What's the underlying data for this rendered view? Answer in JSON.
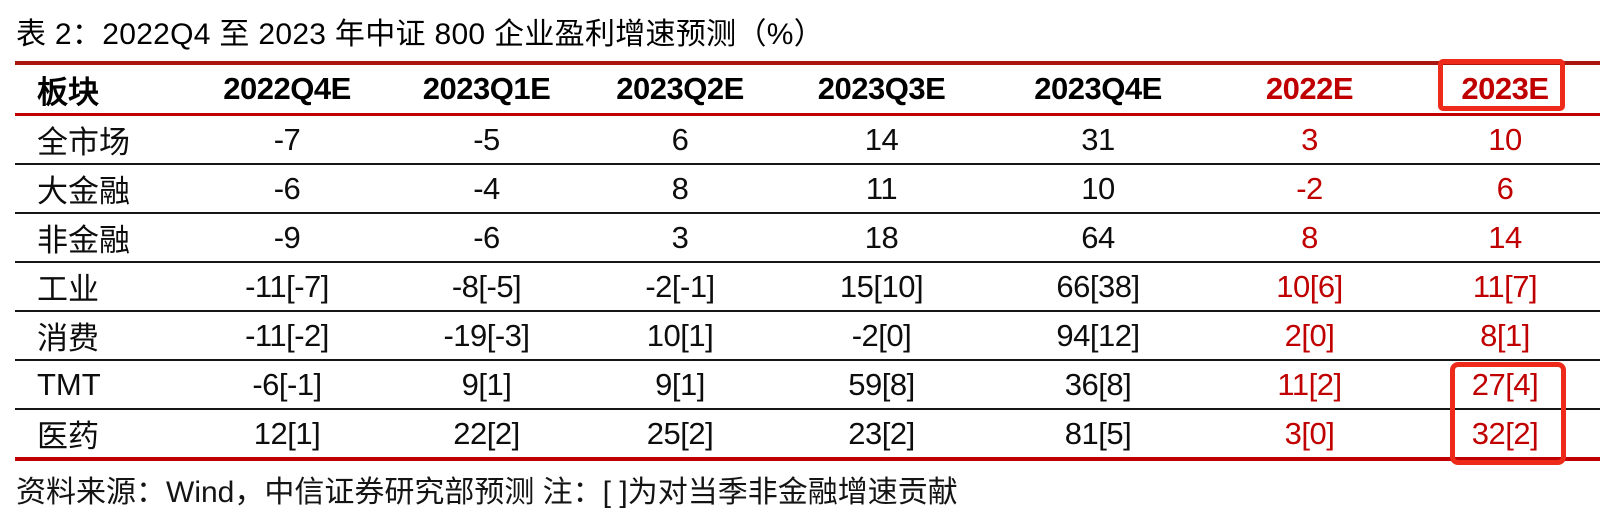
{
  "title": "表 2：2022Q4 至 2023 年中证 800 企业盈利增速预测（%）",
  "table": {
    "columns": [
      "板块",
      "2022Q4E",
      "2023Q1E",
      "2023Q2E",
      "2023Q3E",
      "2023Q4E",
      "2022E",
      "2023E"
    ],
    "red_columns": [
      "2022E",
      "2023E"
    ],
    "rows": [
      {
        "label": "全市场",
        "values": [
          "-7",
          "-5",
          "6",
          "14",
          "31",
          "3",
          "10"
        ]
      },
      {
        "label": "大金融",
        "values": [
          "-6",
          "-4",
          "8",
          "11",
          "10",
          "-2",
          "6"
        ]
      },
      {
        "label": "非金融",
        "values": [
          "-9",
          "-6",
          "3",
          "18",
          "64",
          "8",
          "14"
        ]
      },
      {
        "label": "工业",
        "values": [
          "-11[-7]",
          "-8[-5]",
          "-2[-1]",
          "15[10]",
          "66[38]",
          "10[6]",
          "11[7]"
        ]
      },
      {
        "label": "消费",
        "values": [
          "-11[-2]",
          "-19[-3]",
          "10[1]",
          "-2[0]",
          "94[12]",
          "2[0]",
          "8[1]"
        ]
      },
      {
        "label": "TMT",
        "values": [
          "-6[-1]",
          "9[1]",
          "9[1]",
          "59[8]",
          "36[8]",
          "11[2]",
          "27[4]"
        ]
      },
      {
        "label": "医药",
        "values": [
          "12[1]",
          "22[2]",
          "25[2]",
          "23[2]",
          "81[5]",
          "3[0]",
          "32[2]"
        ]
      }
    ]
  },
  "annotations": {
    "boxed_header": "2023E",
    "boxed_cells": [
      {
        "row": "TMT",
        "column": "2023E",
        "value": "27[4]"
      },
      {
        "row": "医药",
        "column": "2023E",
        "value": "32[2]"
      }
    ]
  },
  "footer": "资料来源：Wind，中信证券研究部预测 注：[ ]为对当季非金融增速贡献",
  "colors": {
    "accent_red_text": "#C00000",
    "highlight_box_red": "#EE2B1B",
    "top_rule_red": "#AA1710",
    "row_rule_black": "#161616"
  }
}
